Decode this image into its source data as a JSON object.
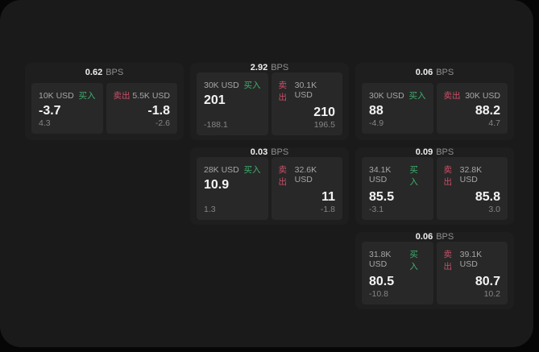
{
  "labels": {
    "bps_unit": "BPS",
    "buy": "买入",
    "sell": "卖出"
  },
  "colors": {
    "buy": "#3fae6e",
    "sell": "#c94f68",
    "window-bg": "#1a1a1a",
    "card-bg": "#1e1e1e",
    "panel-bg": "#282828"
  },
  "cards": [
    {
      "bps": "0.62",
      "col": 1,
      "row": 1,
      "buy": {
        "amount": "10K USD",
        "price": "-3.7",
        "delta": "4.3"
      },
      "sell": {
        "amount": "5.5K USD",
        "price": "-1.8",
        "delta": "-2.6"
      }
    },
    {
      "bps": "2.92",
      "col": 2,
      "row": 1,
      "buy": {
        "amount": "30K USD",
        "price": "201",
        "delta": "-188.1"
      },
      "sell": {
        "amount": "30.1K USD",
        "price": "210",
        "delta": "196.5"
      }
    },
    {
      "bps": "0.06",
      "col": 3,
      "row": 1,
      "buy": {
        "amount": "30K USD",
        "price": "88",
        "delta": "-4.9"
      },
      "sell": {
        "amount": "30K USD",
        "price": "88.2",
        "delta": "4.7"
      }
    },
    {
      "bps": "0.03",
      "col": 2,
      "row": 2,
      "buy": {
        "amount": "28K USD",
        "price": "10.9",
        "delta": "1.3"
      },
      "sell": {
        "amount": "32.6K USD",
        "price": "11",
        "delta": "-1.8"
      }
    },
    {
      "bps": "0.09",
      "col": 3,
      "row": 2,
      "buy": {
        "amount": "34.1K USD",
        "price": "85.5",
        "delta": "-3.1"
      },
      "sell": {
        "amount": "32.8K USD",
        "price": "85.8",
        "delta": "3.0"
      }
    },
    {
      "bps": "0.06",
      "col": 3,
      "row": 3,
      "buy": {
        "amount": "31.8K USD",
        "price": "80.5",
        "delta": "-10.8"
      },
      "sell": {
        "amount": "39.1K USD",
        "price": "80.7",
        "delta": "10.2"
      }
    }
  ]
}
